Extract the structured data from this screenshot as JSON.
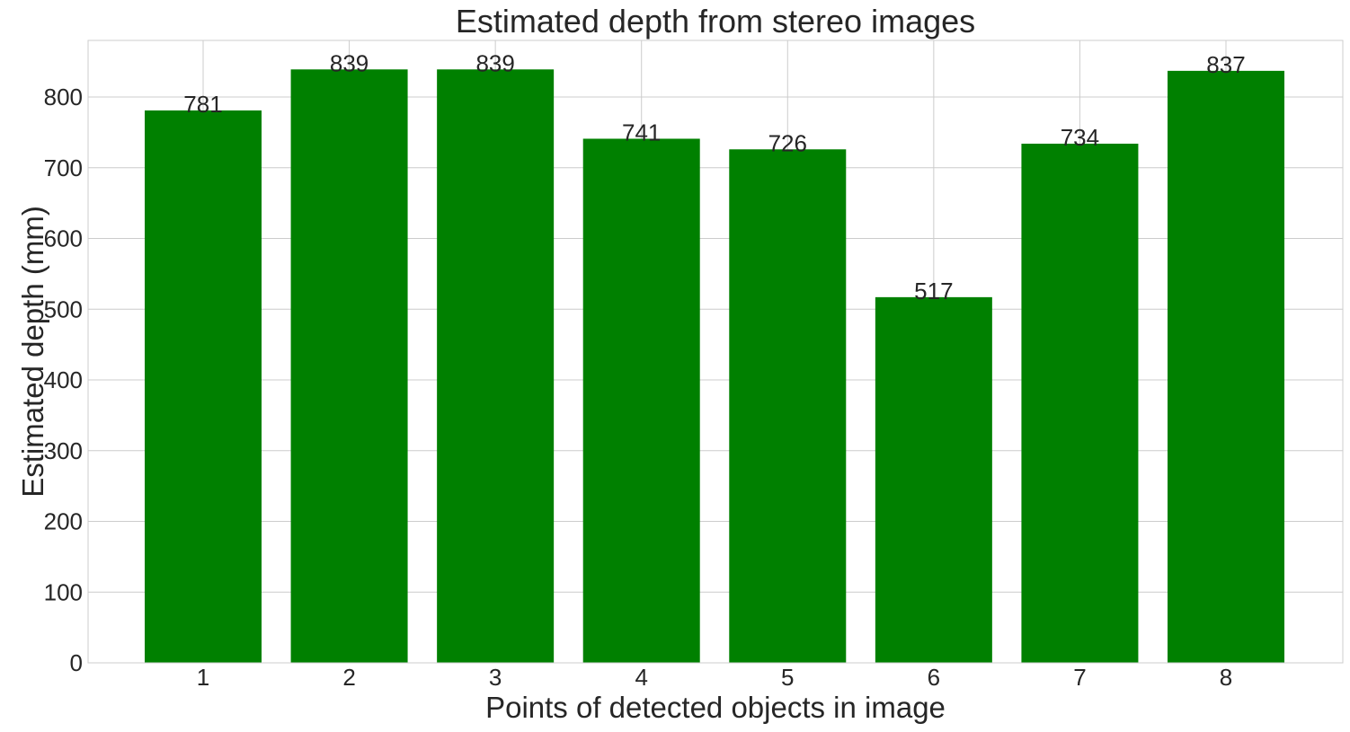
{
  "chart_data": {
    "type": "bar",
    "title": "Estimated depth from stereo images",
    "xlabel": "Points of detected objects in image",
    "ylabel": "Estimated depth (mm)",
    "categories": [
      "1",
      "2",
      "3",
      "4",
      "5",
      "6",
      "7",
      "8"
    ],
    "values": [
      781,
      839,
      839,
      741,
      726,
      517,
      734,
      837
    ],
    "data_labels": [
      "781",
      "839",
      "839",
      "741",
      "726",
      "517",
      "734",
      "837"
    ],
    "y_ticks": [
      0,
      100,
      200,
      300,
      400,
      500,
      600,
      700,
      800
    ],
    "ylim": [
      0,
      880
    ],
    "grid": true,
    "bar_color": "#008000"
  }
}
